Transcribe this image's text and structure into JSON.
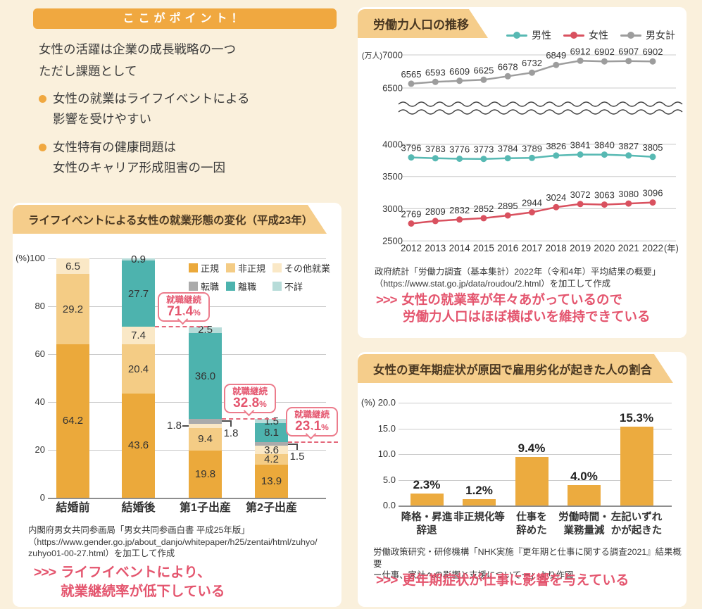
{
  "theme": {
    "page_bg": "#faf0dc",
    "accent_orange": "#f0a840",
    "banner_bg": "#f5cd8b",
    "banner_text": "#4a3822",
    "conclusion_pink": "#e4556e",
    "callout_border": "#ec7c8c",
    "grid_gray": "#cbcbcb",
    "text_dark": "#3a3a3a"
  },
  "points": {
    "badge": "ここがポイント！",
    "intro": "女性の活躍は企業の成長戦略の一つ\nただし課題として",
    "bullets": [
      "女性の就業はライフイベントによる\n影響を受けやすい",
      "女性特有の健康問題は\n女性のキャリア形成阻害の一因"
    ]
  },
  "employment_panel": {
    "source": "内閣府男女共同参画局「男女共同参画白書 平成25年版」\n（https://www.gender.go.jp/about_danjo/whitepaper/h25/zentai/html/zuhyo/\nzuhyo01-00-27.html）を加工して作成",
    "conclusion": {
      "arrow": ">>>",
      "line1": "ライフイベントにより、",
      "line2": "就業継続率が低下している"
    }
  },
  "labor_panel": {
    "source": "政府統計「労働力調査（基本集計）2022年（令和4年）平均結果の概要」\n（https://www.stat.go.jp/data/roudou/2.html）を加工して作成",
    "conclusion": {
      "arrow": ">>>",
      "line1": "女性の就業率が年々あがっているので",
      "line2": "労働力人口はほぼ横ばいを維持できている"
    }
  },
  "menopause_panel": {
    "source": "労働政策研究・研修機構「NHK実施『更年期と仕事に関する調査2021』結果概要\nー仕事、家計への影響と支援についてー」より作図",
    "conclusion": {
      "arrow": ">>>",
      "line1": "更年期症状が仕事に影響を与えている"
    }
  },
  "chart_data": [
    {
      "id": "employment_change",
      "type": "bar",
      "stacked": true,
      "title": "ライフイベントによる女性の就業形態の変化（平成23年）",
      "ylabel": "(%)",
      "ylim": [
        0,
        100
      ],
      "y_ticks": [
        100,
        80,
        60,
        40,
        20,
        0
      ],
      "categories": [
        "結婚前",
        "結婚後",
        "第1子出産",
        "第2子出産"
      ],
      "series": [
        {
          "name": "正規",
          "color": "#eba93b",
          "values": [
            64.2,
            43.6,
            19.8,
            13.9
          ],
          "label_pos": [
            "in",
            "in",
            "in",
            "in"
          ]
        },
        {
          "name": "非正規",
          "color": "#f4cc85",
          "values": [
            29.2,
            20.4,
            9.4,
            4.2
          ],
          "label_pos": [
            "in",
            "in",
            "in",
            "in"
          ]
        },
        {
          "name": "その他就業",
          "color": "#fae8c6",
          "values": [
            6.5,
            7.4,
            1.8,
            3.6
          ],
          "label_pos": [
            "in",
            "in",
            "left",
            "in"
          ]
        },
        {
          "name": "転職",
          "color": "#ababab",
          "values": [
            0,
            0,
            1.8,
            1.5
          ],
          "label_pos": [
            null,
            null,
            "right",
            "right"
          ]
        },
        {
          "name": "離職",
          "color": "#4db3ae",
          "values": [
            0,
            27.7,
            36.0,
            8.1
          ],
          "label_pos": [
            null,
            "in",
            "in",
            "in"
          ]
        },
        {
          "name": "不詳",
          "color": "#b7dcd9",
          "values": [
            0,
            0.9,
            2.5,
            1.5
          ],
          "label_pos": [
            null,
            "in",
            "in",
            "in"
          ]
        }
      ],
      "segment_labels": [
        [
          "64.2",
          "43.6",
          "19.8",
          "13.9"
        ],
        [
          "29.2",
          "20.4",
          "9.4",
          "4.2"
        ],
        [
          "6.5",
          "7.4",
          "1.8",
          "3.6"
        ],
        [
          "",
          "",
          "1.8",
          "1.5"
        ],
        [
          "",
          "27.7",
          "36.0",
          "8.1"
        ],
        [
          "",
          "0.9",
          "2.5",
          "1.5"
        ]
      ],
      "callouts": [
        {
          "label": "就職継続",
          "value": "71.4",
          "unit": "%",
          "at_percent": 71.4
        },
        {
          "label": "就職継続",
          "value": "32.8",
          "unit": "%",
          "at_percent": 32.8
        },
        {
          "label": "就職継続",
          "value": "23.1",
          "unit": "%",
          "at_percent": 23.1
        }
      ],
      "legend_position": "inside top-right",
      "grid": true
    },
    {
      "id": "labor_force",
      "type": "line",
      "title": "労働力人口の推移",
      "ylabel": "(万人)",
      "x_suffix": "(年)",
      "x": [
        2012,
        2013,
        2014,
        2015,
        2016,
        2017,
        2018,
        2019,
        2020,
        2021,
        2022
      ],
      "series": [
        {
          "name": "男性",
          "color": "#57b9b3",
          "values": [
            3796,
            3783,
            3776,
            3773,
            3784,
            3789,
            3826,
            3841,
            3840,
            3827,
            3805
          ]
        },
        {
          "name": "女性",
          "color": "#d9515f",
          "values": [
            2769,
            2809,
            2832,
            2852,
            2895,
            2944,
            3024,
            3072,
            3063,
            3080,
            3096
          ]
        },
        {
          "name": "男女計",
          "color": "#9d9d9d",
          "values": [
            6565,
            6593,
            6609,
            6625,
            6678,
            6732,
            6849,
            6912,
            6902,
            6907,
            6902
          ]
        }
      ],
      "axis_break": true,
      "upper_ticks": [
        7000,
        6500
      ],
      "lower_ticks": [
        4000,
        3500,
        3000,
        2500
      ],
      "legend_position": "top-right",
      "grid": true
    },
    {
      "id": "menopause_impact",
      "type": "bar",
      "title": "女性の更年期症状が原因で雇用劣化が起きた人の割合",
      "ylabel": "(%)",
      "ylim": [
        0,
        20
      ],
      "y_ticks": [
        "20.0",
        "15.0",
        "10.0",
        "5.0",
        "0.0"
      ],
      "categories": [
        "降格・昇進\n辞退",
        "非正規化等",
        "仕事を\n辞めた",
        "労働時間・\n業務量減",
        "左記いずれ\nかが起きた"
      ],
      "values": [
        2.3,
        1.2,
        9.4,
        4.0,
        15.3
      ],
      "value_labels": [
        "2.3%",
        "1.2%",
        "9.4%",
        "4.0%",
        "15.3%"
      ],
      "bar_color": "#ecab3f",
      "grid": true
    }
  ]
}
